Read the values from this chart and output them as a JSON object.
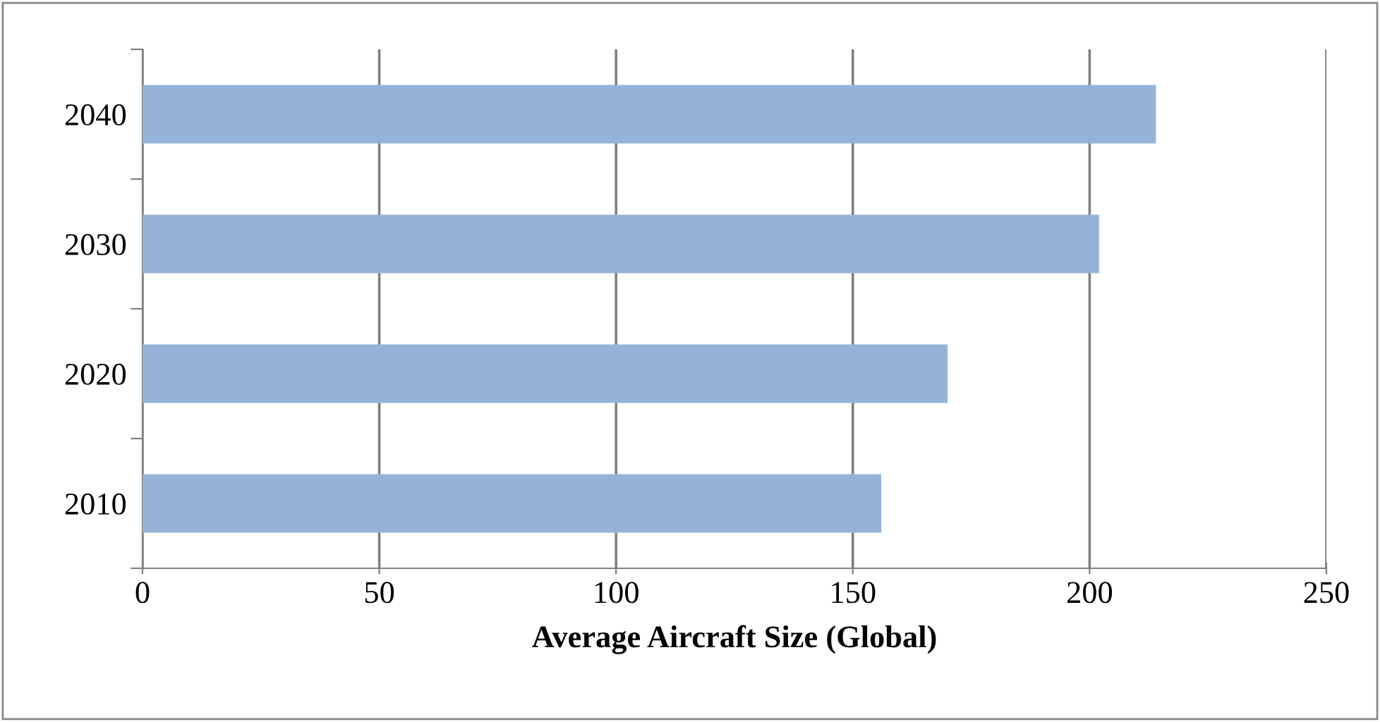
{
  "chart_data": {
    "type": "bar",
    "orientation": "horizontal",
    "xlabel": "Average Aircraft Size (Global)",
    "categories": [
      "2040",
      "2030",
      "2020",
      "2010"
    ],
    "values": [
      214,
      202,
      170,
      156
    ],
    "color": "#95b3d7",
    "xlim": [
      0,
      250
    ],
    "xticks": [
      0,
      50,
      100,
      150,
      200,
      250
    ],
    "grid": "x",
    "legend": false
  }
}
